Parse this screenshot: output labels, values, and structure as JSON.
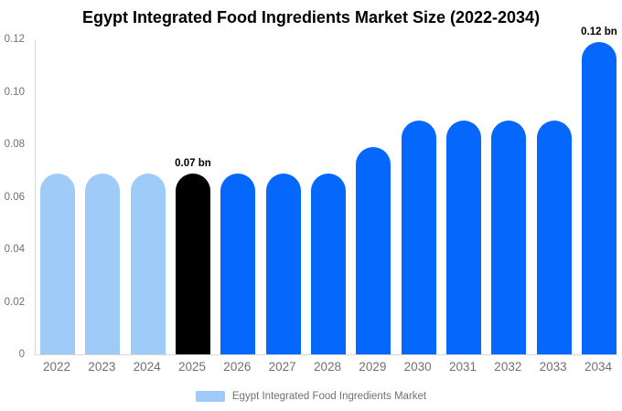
{
  "chart": {
    "title": "Egypt Integrated Food Ingredients Market Size (2022-2034)",
    "legend": "Egypt Integrated Food Ingredients Market"
  },
  "chart_data": {
    "type": "bar",
    "title": "Egypt Integrated Food Ingredients Market Size (2022-2034)",
    "unit": "bn",
    "xlabel": "",
    "ylabel": "",
    "categories": [
      "2022",
      "2023",
      "2024",
      "2025",
      "2026",
      "2027",
      "2028",
      "2029",
      "2030",
      "2031",
      "2032",
      "2033",
      "2034"
    ],
    "values": [
      0.069,
      0.069,
      0.069,
      0.069,
      0.069,
      0.069,
      0.069,
      0.079,
      0.089,
      0.089,
      0.089,
      0.089,
      0.119
    ],
    "bar_colors": [
      "#9fcbf8",
      "#9fcbf8",
      "#9fcbf8",
      "#000000",
      "#0667fc",
      "#0667fc",
      "#0667fc",
      "#0667fc",
      "#0667fc",
      "#0667fc",
      "#0667fc",
      "#0667fc",
      "#0667fc"
    ],
    "annotations": [
      {
        "category": "2025",
        "text": "0.07 bn"
      },
      {
        "category": "2034",
        "text": "0.12 bn"
      }
    ],
    "yticks": [
      0,
      0.02,
      0.04,
      0.06,
      0.08,
      0.1,
      0.12
    ],
    "ytick_labels": [
      "0",
      "0.02",
      "0.04",
      "0.06",
      "0.08",
      "0.10",
      "0.12"
    ],
    "ylim": [
      0,
      0.12
    ],
    "grid": false,
    "legend_entries": [
      "Egypt Integrated Food Ingredients Market"
    ],
    "legend_position": "bottom",
    "colors": {
      "historical_bar": "#9fcbf8",
      "highlight_bar": "#000000",
      "forecast_bar": "#0667fc",
      "axis_line": "#d8d8d8",
      "tick_text": "#707070",
      "title_text": "#000000"
    }
  }
}
